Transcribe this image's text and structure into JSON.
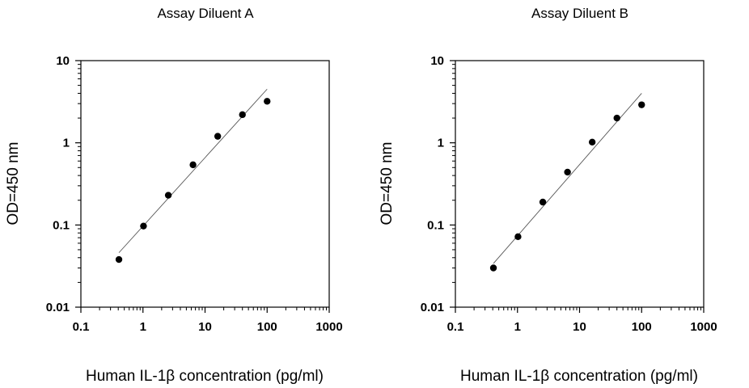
{
  "chart_data": [
    {
      "type": "scatter",
      "title": "Assay Diluent A",
      "xlabel": "Human IL-1β  concentration (pg/ml)",
      "ylabel": "OD=450 nm",
      "xscale": "log",
      "yscale": "log",
      "xlim": [
        0.1,
        1000
      ],
      "ylim": [
        0.01,
        10
      ],
      "xticks": [
        "0.1",
        "1",
        "10",
        "100",
        "1000"
      ],
      "yticks": [
        "0.01",
        "0.1",
        "1",
        "10"
      ],
      "grid": false,
      "points": [
        {
          "x": 0.41,
          "y": 0.038
        },
        {
          "x": 1.02,
          "y": 0.097
        },
        {
          "x": 2.56,
          "y": 0.23
        },
        {
          "x": 6.4,
          "y": 0.54
        },
        {
          "x": 16,
          "y": 1.2
        },
        {
          "x": 40,
          "y": 2.2
        },
        {
          "x": 100,
          "y": 3.2
        }
      ],
      "fit_line": {
        "x": [
          0.41,
          100
        ],
        "y": [
          0.046,
          4.5
        ]
      }
    },
    {
      "type": "scatter",
      "title": "Assay Diluent B",
      "xlabel": "Human IL-1β  concentration (pg/ml)",
      "ylabel": "OD=450 nm",
      "xscale": "log",
      "yscale": "log",
      "xlim": [
        0.1,
        1000
      ],
      "ylim": [
        0.01,
        10
      ],
      "xticks": [
        "0.1",
        "1",
        "10",
        "100",
        "1000"
      ],
      "yticks": [
        "0.01",
        "0.1",
        "1",
        "10"
      ],
      "grid": false,
      "points": [
        {
          "x": 0.41,
          "y": 0.03
        },
        {
          "x": 1.02,
          "y": 0.072
        },
        {
          "x": 2.56,
          "y": 0.19
        },
        {
          "x": 6.4,
          "y": 0.44
        },
        {
          "x": 16,
          "y": 1.02
        },
        {
          "x": 40,
          "y": 2.0
        },
        {
          "x": 100,
          "y": 2.9
        }
      ],
      "fit_line": {
        "x": [
          0.41,
          100
        ],
        "y": [
          0.034,
          4.0
        ]
      }
    }
  ]
}
